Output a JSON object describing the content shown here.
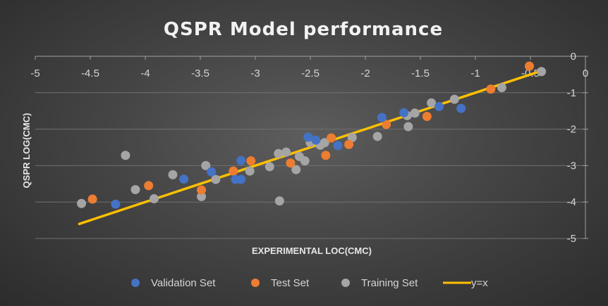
{
  "chart_data": {
    "type": "scatter",
    "title": "QSPR Model performance",
    "xlabel": "EXPERIMENTAL LOC(CMC)",
    "ylabel": "QSPR LOG(CMC)",
    "xlim": [
      -5,
      0
    ],
    "ylim": [
      -5,
      0
    ],
    "x_axis_position": "top",
    "y_axis_position": "right",
    "x_ticks": [
      "-5",
      "-4.5",
      "-4",
      "-3.5",
      "-3",
      "-2.5",
      "-2",
      "-1.5",
      "-1",
      "-0.5",
      "0"
    ],
    "y_ticks": [
      "0",
      "-1",
      "-2",
      "-3",
      "-4",
      "-5"
    ],
    "grid": "horizontal",
    "legend_position": "bottom",
    "series": [
      {
        "name": "Validation Set",
        "color": "#4472c4",
        "points": [
          {
            "x": -4.27,
            "y": -4.06
          },
          {
            "x": -3.65,
            "y": -3.37
          },
          {
            "x": -3.4,
            "y": -3.17
          },
          {
            "x": -3.18,
            "y": -3.38
          },
          {
            "x": -3.13,
            "y": -3.38
          },
          {
            "x": -3.13,
            "y": -2.86
          },
          {
            "x": -2.52,
            "y": -2.22
          },
          {
            "x": -2.25,
            "y": -2.45
          },
          {
            "x": -2.45,
            "y": -2.3
          },
          {
            "x": -1.85,
            "y": -1.68
          },
          {
            "x": -1.65,
            "y": -1.55
          },
          {
            "x": -1.33,
            "y": -1.38
          },
          {
            "x": -1.13,
            "y": -1.43
          }
        ]
      },
      {
        "name": "Test Set",
        "color": "#ed7d31",
        "points": [
          {
            "x": -4.48,
            "y": -3.92
          },
          {
            "x": -3.97,
            "y": -3.55
          },
          {
            "x": -3.49,
            "y": -3.67
          },
          {
            "x": -3.2,
            "y": -3.15
          },
          {
            "x": -3.04,
            "y": -2.87
          },
          {
            "x": -2.68,
            "y": -2.93
          },
          {
            "x": -2.31,
            "y": -2.24
          },
          {
            "x": -2.36,
            "y": -2.72
          },
          {
            "x": -2.15,
            "y": -2.42
          },
          {
            "x": -1.81,
            "y": -1.87
          },
          {
            "x": -1.44,
            "y": -1.65
          },
          {
            "x": -0.86,
            "y": -0.9
          },
          {
            "x": -0.51,
            "y": -0.27
          }
        ]
      },
      {
        "name": "Training Set",
        "color": "#a5a5a5",
        "points": [
          {
            "x": -4.58,
            "y": -4.04
          },
          {
            "x": -4.18,
            "y": -2.72
          },
          {
            "x": -4.09,
            "y": -3.66
          },
          {
            "x": -3.92,
            "y": -3.91
          },
          {
            "x": -3.75,
            "y": -3.25
          },
          {
            "x": -3.49,
            "y": -3.85
          },
          {
            "x": -3.45,
            "y": -3.0
          },
          {
            "x": -3.36,
            "y": -3.38
          },
          {
            "x": -3.05,
            "y": -3.15
          },
          {
            "x": -2.87,
            "y": -3.03
          },
          {
            "x": -2.78,
            "y": -3.97
          },
          {
            "x": -2.79,
            "y": -2.67
          },
          {
            "x": -2.72,
            "y": -2.63
          },
          {
            "x": -2.63,
            "y": -3.11
          },
          {
            "x": -2.6,
            "y": -2.75
          },
          {
            "x": -2.55,
            "y": -2.87
          },
          {
            "x": -2.5,
            "y": -2.37
          },
          {
            "x": -2.41,
            "y": -2.44
          },
          {
            "x": -2.37,
            "y": -2.37
          },
          {
            "x": -2.12,
            "y": -2.23
          },
          {
            "x": -1.89,
            "y": -2.2
          },
          {
            "x": -1.62,
            "y": -1.63
          },
          {
            "x": -1.61,
            "y": -1.93
          },
          {
            "x": -1.55,
            "y": -1.56
          },
          {
            "x": -1.4,
            "y": -1.28
          },
          {
            "x": -1.19,
            "y": -1.18
          },
          {
            "x": -0.76,
            "y": -0.86
          },
          {
            "x": -0.4,
            "y": -0.42
          }
        ]
      }
    ],
    "reference_line": {
      "name": "y=x",
      "color": "#ffc000",
      "from": {
        "x": -4.6,
        "y": -4.6
      },
      "to": {
        "x": -0.4,
        "y": -0.4
      }
    }
  }
}
